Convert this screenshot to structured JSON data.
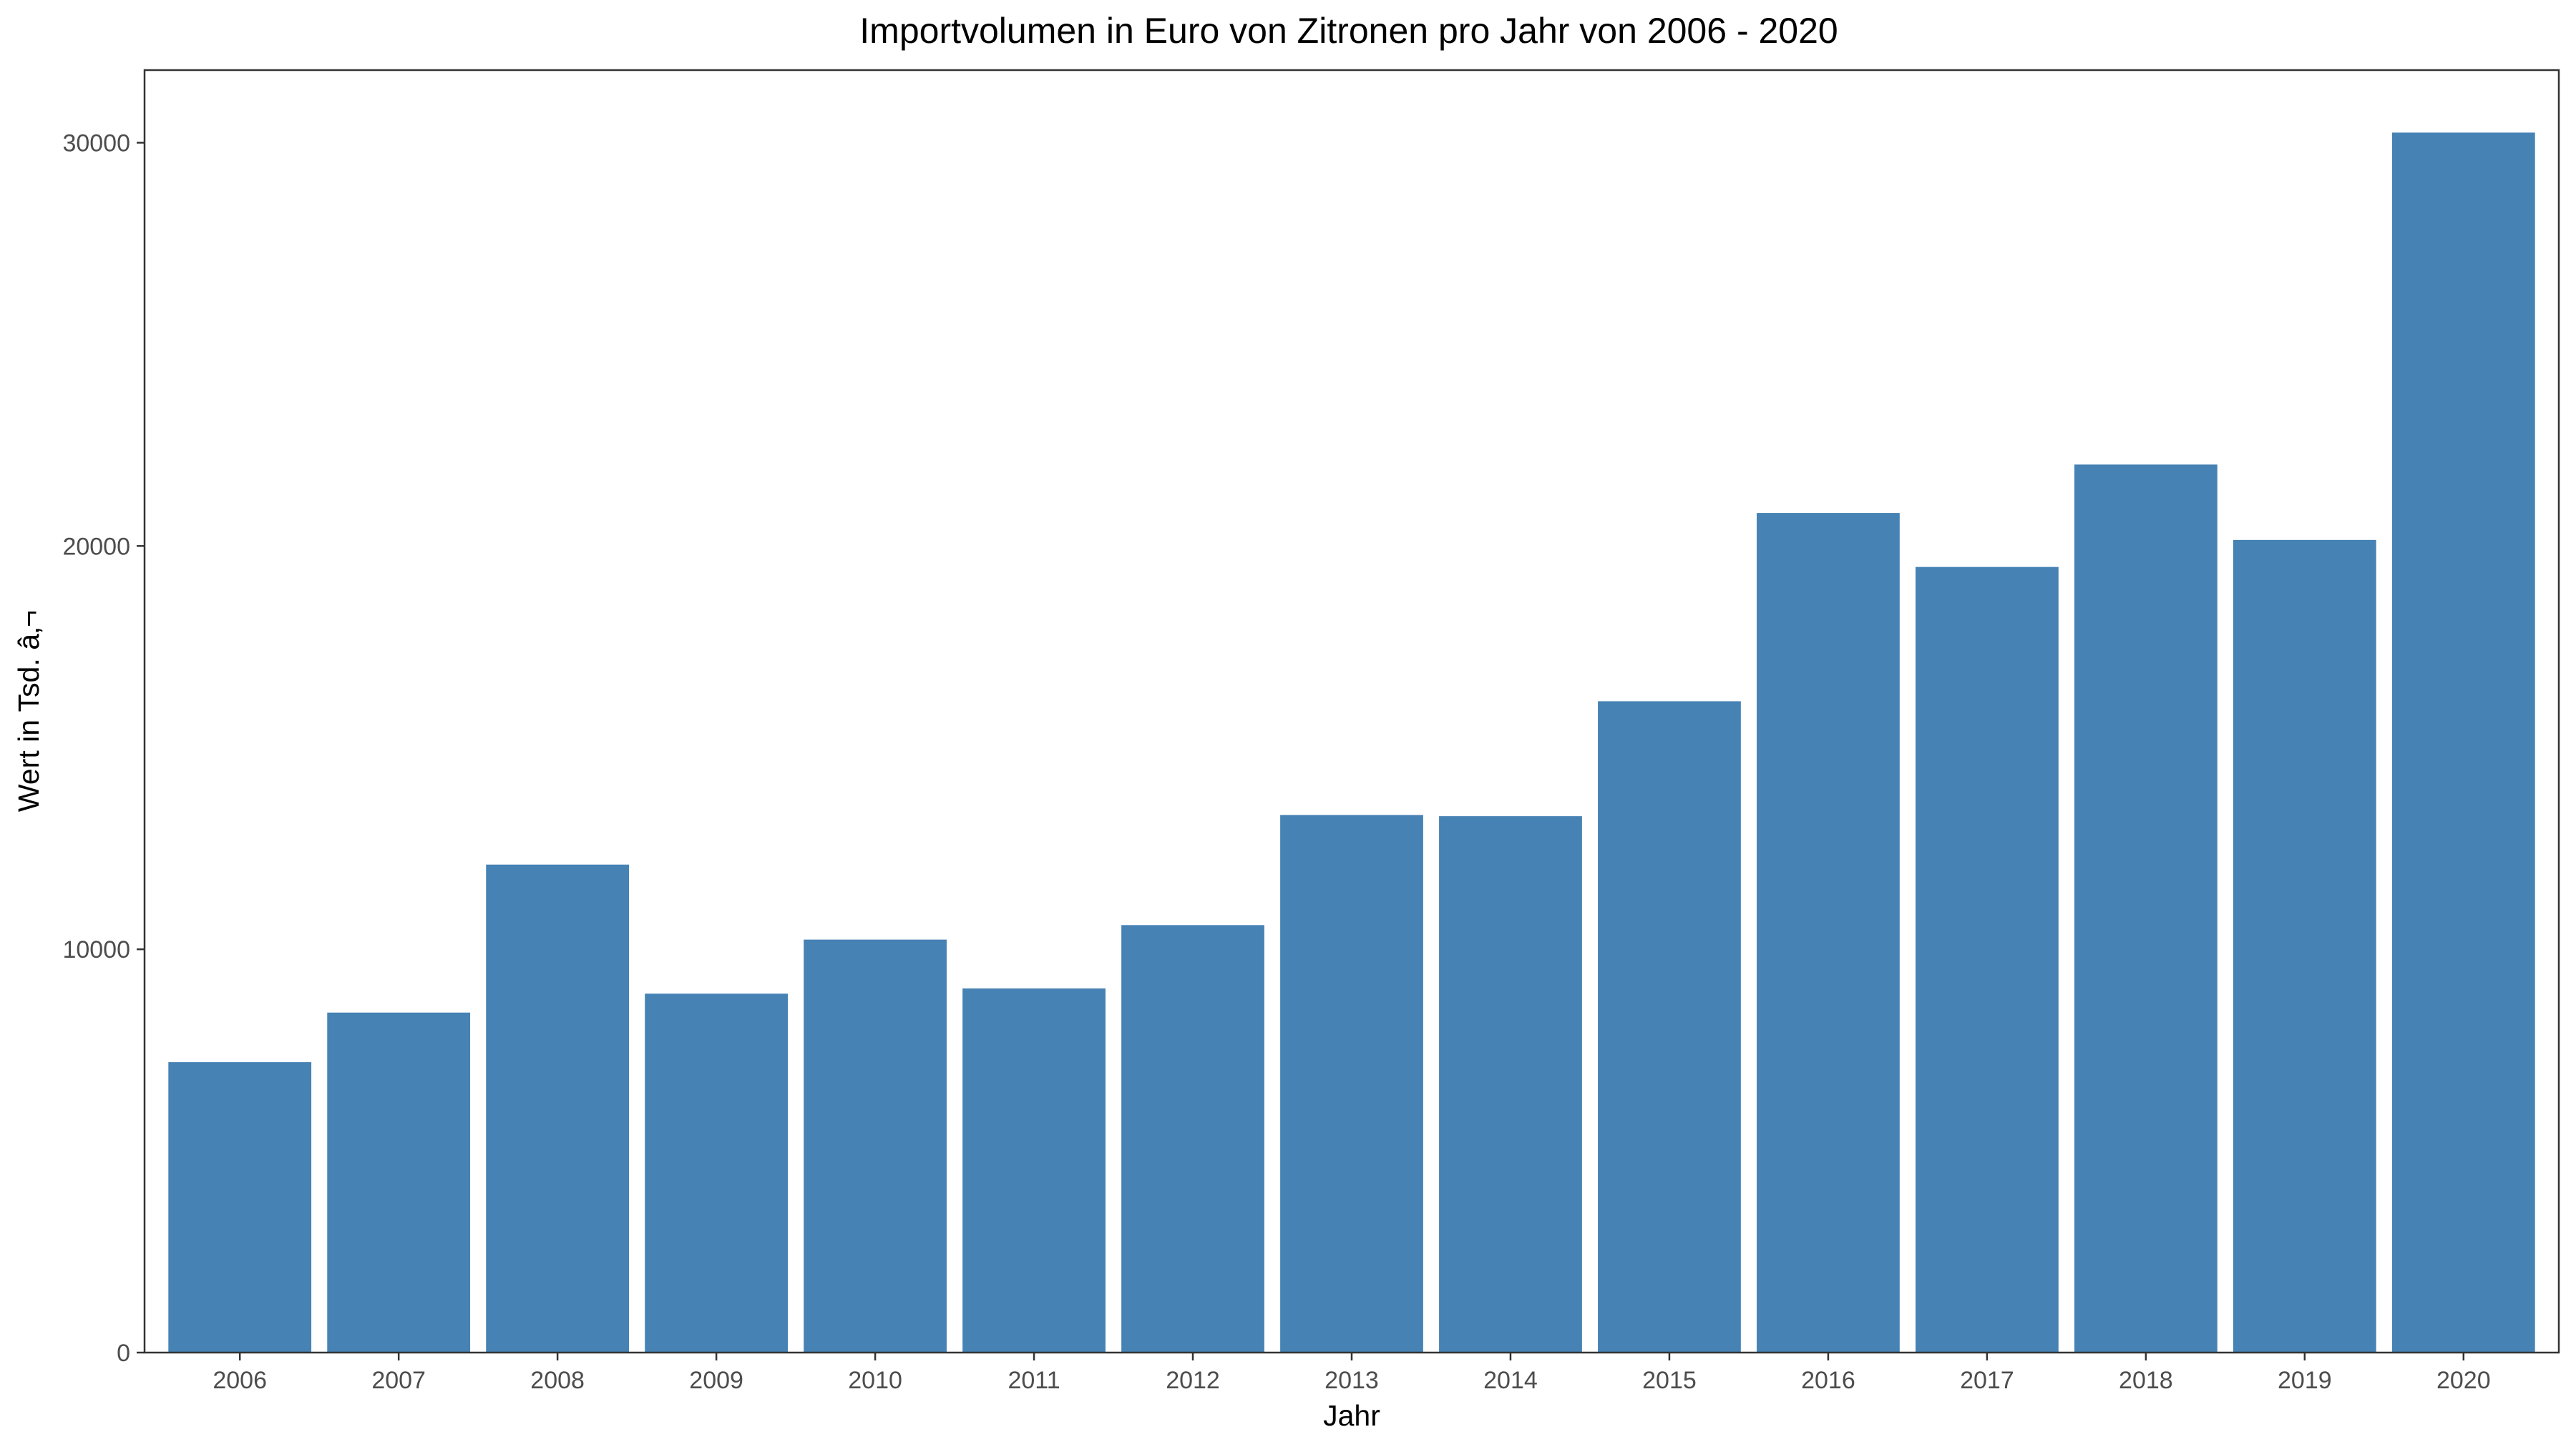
{
  "chart_data": {
    "type": "bar",
    "title": "Importvolumen in Euro von Zitronen pro Jahr von 2006 - 2020",
    "xlabel": "Jahr",
    "ylabel": "Wert in Tsd. â‚¬",
    "categories": [
      "2006",
      "2007",
      "2008",
      "2009",
      "2010",
      "2011",
      "2012",
      "2013",
      "2014",
      "2015",
      "2016",
      "2017",
      "2018",
      "2019",
      "2020"
    ],
    "values": [
      7200,
      8430,
      12100,
      8900,
      10240,
      9030,
      10600,
      13330,
      13300,
      16150,
      20820,
      19480,
      22020,
      20150,
      30250
    ],
    "ylim": [
      0,
      31800
    ],
    "yticks": [
      0,
      10000,
      20000,
      30000
    ],
    "ytick_labels": [
      "0",
      "10000",
      "20000",
      "30000"
    ],
    "grid": false,
    "legend": "none",
    "bar_color": "#4682B4",
    "panel_border_color": "#333333"
  }
}
